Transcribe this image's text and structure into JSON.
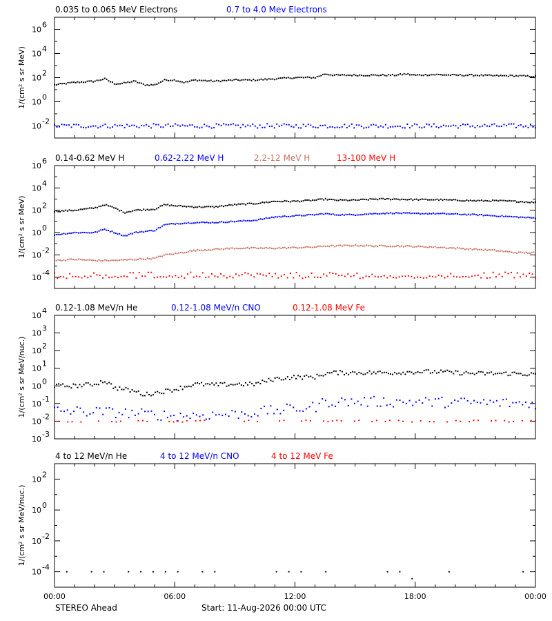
{
  "footer": {
    "spacecraft": "STEREO Ahead",
    "start": "Start: 11-Aug-2026 00:00 UTC"
  },
  "x_axis": {
    "tick_labels": [
      "00:00",
      "06:00",
      "12:00",
      "18:00",
      "00:00"
    ],
    "range_hours": [
      0,
      24
    ]
  },
  "chart_data": [
    {
      "type": "scatter",
      "log_y": true,
      "ylim_exp": [
        -3,
        7
      ],
      "ylabel": "1/(cm² s sr MeV)",
      "y_ticks": [
        {
          "exp": 6,
          "label": "10",
          "sup": "6"
        },
        {
          "exp": 4,
          "label": "10",
          "sup": "4"
        },
        {
          "exp": 2,
          "label": "10",
          "sup": "2"
        },
        {
          "exp": 0,
          "label": "10",
          "sup": "0"
        },
        {
          "exp": -2,
          "label": "10",
          "sup": "-2"
        }
      ],
      "series": [
        {
          "name": "0.035 to 0.065 MeV Electrons",
          "color": "#000000",
          "x": [
            0,
            1,
            2,
            2.5,
            3,
            3.3,
            4,
            4.5,
            5,
            5.5,
            6,
            6.5,
            7,
            8,
            9,
            10,
            11,
            12,
            13,
            13.5,
            14,
            15,
            16,
            17,
            17.5,
            18,
            19,
            20,
            21,
            22,
            23,
            24
          ],
          "y_exp": [
            1.4,
            1.6,
            1.7,
            1.9,
            1.5,
            1.5,
            1.7,
            1.4,
            1.4,
            1.8,
            1.8,
            1.6,
            1.8,
            1.7,
            1.8,
            1.8,
            1.9,
            2.0,
            2.0,
            2.3,
            2.2,
            2.2,
            2.2,
            2.2,
            2.3,
            2.2,
            2.25,
            2.2,
            2.2,
            2.15,
            2.15,
            2.1
          ],
          "jitter": 0.06,
          "density": 250
        },
        {
          "name": "0.7 to 4.0 Mev Electrons",
          "color": "#0000ff",
          "x": [
            0,
            24
          ],
          "y_exp": [
            -2.0,
            -2.0
          ],
          "jitter": 0.18,
          "density": 200
        }
      ]
    },
    {
      "type": "scatter",
      "log_y": true,
      "ylim_exp": [
        -5,
        6
      ],
      "ylabel": "1/(cm² s sr MeV)",
      "y_ticks": [
        {
          "exp": 6,
          "label": "10",
          "sup": "6"
        },
        {
          "exp": 4,
          "label": "10",
          "sup": "4"
        },
        {
          "exp": 2,
          "label": "10",
          "sup": "2"
        },
        {
          "exp": 0,
          "label": "10",
          "sup": "0"
        },
        {
          "exp": -2,
          "label": "10",
          "sup": "-2"
        },
        {
          "exp": -4,
          "label": "10",
          "sup": "-4"
        }
      ],
      "series": [
        {
          "name": "0.14-0.62 MeV H",
          "color": "#000000",
          "x": [
            0,
            1,
            2,
            2.5,
            3,
            3.5,
            4,
            5,
            5.5,
            6,
            7,
            8,
            9,
            10,
            11,
            12,
            13,
            13.5,
            14,
            15,
            16,
            17,
            18,
            19,
            20,
            21,
            22,
            23,
            24
          ],
          "y_exp": [
            1.9,
            2.0,
            2.2,
            2.5,
            2.2,
            1.8,
            2.0,
            2.1,
            2.5,
            2.4,
            2.3,
            2.3,
            2.5,
            2.6,
            2.8,
            2.8,
            2.9,
            3.0,
            2.9,
            2.9,
            3.0,
            3.0,
            2.95,
            2.95,
            2.9,
            2.85,
            2.85,
            2.8,
            2.7
          ],
          "jitter": 0.06,
          "density": 260
        },
        {
          "name": "0.62-2.22 MeV H",
          "color": "#0000ff",
          "x": [
            0,
            1,
            2,
            2.5,
            3,
            3.5,
            4,
            5,
            5.5,
            6,
            7,
            8,
            9,
            10,
            11,
            12,
            13,
            13.5,
            14,
            15,
            16,
            17,
            18,
            19,
            20,
            21,
            22,
            23,
            24
          ],
          "y_exp": [
            -0.2,
            0.0,
            0.0,
            0.3,
            0.0,
            -0.3,
            0.0,
            0.2,
            0.7,
            0.8,
            0.9,
            0.9,
            1.0,
            1.1,
            1.4,
            1.5,
            1.6,
            1.7,
            1.6,
            1.6,
            1.7,
            1.75,
            1.7,
            1.7,
            1.65,
            1.6,
            1.5,
            1.4,
            1.3
          ],
          "jitter": 0.05,
          "density": 260
        },
        {
          "name": "2.2-12 MeV H",
          "color": "#c87060",
          "x": [
            0,
            1,
            2,
            3,
            4,
            5,
            5.5,
            6,
            7,
            8,
            9,
            10,
            11,
            12,
            13,
            13.5,
            14,
            15,
            16,
            17,
            18,
            19,
            20,
            21,
            22,
            23,
            24
          ],
          "y_exp": [
            -2.5,
            -2.4,
            -2.5,
            -2.5,
            -2.4,
            -2.3,
            -2.0,
            -1.9,
            -1.6,
            -1.5,
            -1.4,
            -1.4,
            -1.4,
            -1.35,
            -1.3,
            -1.2,
            -1.2,
            -1.15,
            -1.2,
            -1.2,
            -1.25,
            -1.3,
            -1.4,
            -1.5,
            -1.6,
            -1.8,
            -1.8
          ],
          "jitter": 0.06,
          "density": 260
        },
        {
          "name": "13-100 MeV H",
          "color": "#ff0000",
          "x": [
            0,
            24
          ],
          "y_exp": [
            -3.8,
            -3.8
          ],
          "jitter": 0.25,
          "density": 160
        }
      ]
    },
    {
      "type": "scatter",
      "log_y": true,
      "ylim_exp": [
        -3,
        4
      ],
      "ylabel": "1/(cm² s sr MeV/nuc.)",
      "y_ticks": [
        {
          "exp": 4,
          "label": "10",
          "sup": "4"
        },
        {
          "exp": 3,
          "label": "10",
          "sup": "3"
        },
        {
          "exp": 2,
          "label": "10",
          "sup": "2"
        },
        {
          "exp": 1,
          "label": "10",
          "sup": "1"
        },
        {
          "exp": 0,
          "label": "10",
          "sup": "0"
        },
        {
          "exp": -1,
          "label": "10",
          "sup": "-1"
        },
        {
          "exp": -2,
          "label": "10",
          "sup": "-2"
        },
        {
          "exp": -3,
          "label": "10",
          "sup": "-3"
        }
      ],
      "series": [
        {
          "name": "0.12-1.08 MeV/n He",
          "color": "#000000",
          "x": [
            0,
            1,
            2,
            2.5,
            3,
            4,
            4.5,
            5,
            6,
            7,
            8,
            9,
            10,
            11,
            12,
            13,
            13.5,
            14,
            15,
            16,
            17,
            18,
            19,
            20,
            21,
            22,
            23,
            24
          ],
          "y_exp": [
            0.0,
            0.0,
            0.1,
            0.3,
            -0.1,
            -0.3,
            -0.5,
            -0.4,
            -0.2,
            0.1,
            0.05,
            0.1,
            0.1,
            0.4,
            0.5,
            0.5,
            0.7,
            0.75,
            0.75,
            0.75,
            0.75,
            0.8,
            0.8,
            0.75,
            0.7,
            0.7,
            0.7,
            0.65
          ],
          "jitter": 0.12,
          "density": 230
        },
        {
          "name": "0.12-1.08 MeV/n CNO",
          "color": "#0000ff",
          "x": [
            0,
            3,
            6,
            9,
            10,
            12,
            13,
            13.5,
            15,
            18,
            21,
            24
          ],
          "y_exp": [
            -1.4,
            -1.5,
            -1.7,
            -1.6,
            -1.5,
            -1.3,
            -1.2,
            -0.9,
            -0.9,
            -0.9,
            -0.95,
            -1.0
          ],
          "jitter": 0.3,
          "density": 150
        },
        {
          "name": "0.12-1.08 MeV Fe",
          "color": "#ff0000",
          "x": [
            0,
            24
          ],
          "y_exp": [
            -2.0,
            -2.0
          ],
          "jitter": 0.05,
          "density": 110
        }
      ]
    },
    {
      "type": "scatter",
      "log_y": true,
      "ylim_exp": [
        -5,
        3
      ],
      "ylabel": "1/(cm² s sr MeV/nuc.)",
      "y_ticks": [
        {
          "exp": 2,
          "label": "10",
          "sup": "2"
        },
        {
          "exp": 0,
          "label": "10",
          "sup": "0"
        },
        {
          "exp": -2,
          "label": "10",
          "sup": "-2"
        },
        {
          "exp": -4,
          "label": "10",
          "sup": "-4"
        }
      ],
      "series": [
        {
          "name": "4 to 12 MeV/n He",
          "color": "#000000",
          "x": [
            0,
            24
          ],
          "y_exp": [
            -4.0,
            -4.0
          ],
          "jitter": 0.05,
          "density": 40
        },
        {
          "name": "4 to 12 MeV/n CNO",
          "color": "#0000ff",
          "x": [],
          "y_exp": [],
          "jitter": 0,
          "density": 0
        },
        {
          "name": "4 to 12 MeV Fe",
          "color": "#ff0000",
          "x": [],
          "y_exp": [],
          "jitter": 0,
          "density": 0
        }
      ]
    }
  ]
}
